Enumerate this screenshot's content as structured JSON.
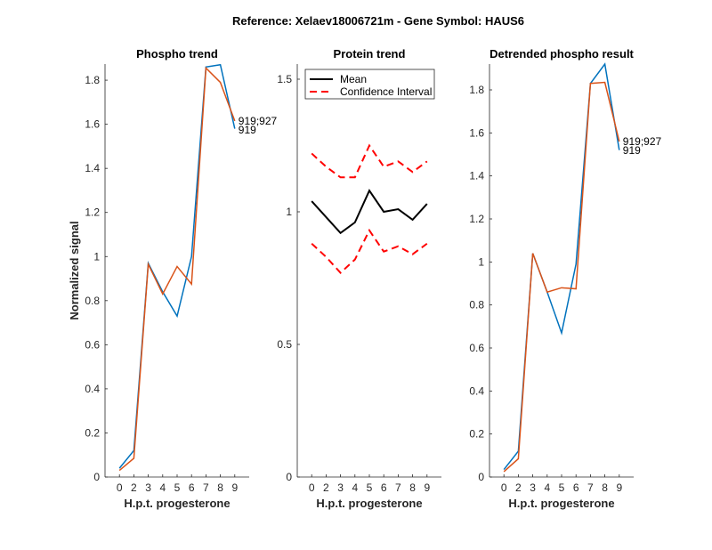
{
  "suptitle": "Reference:  Xelaev18006721m - Gene Symbol:  HAUS6",
  "chart_data": [
    {
      "type": "line",
      "title": "Phospho trend",
      "xlabel": "H.p.t. progesterone",
      "ylabel": "Normalized signal",
      "categories": [
        "0",
        "2",
        "3",
        "4",
        "5",
        "6",
        "7",
        "8",
        "9"
      ],
      "ylim": [
        0,
        1.873
      ],
      "yticks": [
        0,
        0.2,
        0.4,
        0.6,
        0.8,
        1,
        1.2,
        1.4,
        1.6,
        1.8
      ],
      "ytick_labels": [
        "0",
        "0.2",
        "0.4",
        "0.6",
        "0.8",
        "1",
        "1.2",
        "1.4",
        "1.6",
        "1.8"
      ],
      "series": [
        {
          "name": "919",
          "color": "#0072BD",
          "values": [
            0.04,
            0.12,
            0.97,
            0.84,
            0.73,
            1.0,
            1.86,
            1.87,
            1.58
          ]
        },
        {
          "name": "919;927",
          "color": "#D95319",
          "values": [
            0.03,
            0.085,
            0.965,
            0.83,
            0.955,
            0.875,
            1.855,
            1.79,
            1.615
          ]
        }
      ]
    },
    {
      "type": "line",
      "title": "Protein trend",
      "xlabel": "H.p.t. progesterone",
      "ylabel": "",
      "categories": [
        "0",
        "2",
        "3",
        "4",
        "5",
        "6",
        "7",
        "8",
        "9"
      ],
      "ylim": [
        0,
        1.557
      ],
      "yticks": [
        0,
        0.5,
        1,
        1.5
      ],
      "ytick_labels": [
        "0",
        "0.5",
        "1",
        "1.5"
      ],
      "legend": {
        "placement": "top-left",
        "entries": [
          "Mean",
          "Confidence Interval"
        ]
      },
      "series": [
        {
          "name": "Mean",
          "color": "#000000",
          "dash": false,
          "values": [
            1.04,
            0.98,
            0.92,
            0.96,
            1.08,
            1.0,
            1.01,
            0.97,
            1.03
          ]
        },
        {
          "name": "Confidence Interval",
          "color": "#FF0000",
          "dash": true,
          "values": [
            1.22,
            1.17,
            1.13,
            1.13,
            1.25,
            1.17,
            1.19,
            1.15,
            1.19
          ]
        },
        {
          "name": "Confidence Interval",
          "color": "#FF0000",
          "dash": true,
          "values": [
            0.88,
            0.83,
            0.77,
            0.82,
            0.93,
            0.85,
            0.87,
            0.84,
            0.88
          ]
        }
      ]
    },
    {
      "type": "line",
      "title": "Detrended phospho result",
      "xlabel": "H.p.t. progesterone",
      "ylabel": "",
      "categories": [
        "0",
        "2",
        "3",
        "4",
        "5",
        "6",
        "7",
        "8",
        "9"
      ],
      "ylim": [
        0,
        1.92
      ],
      "yticks": [
        0,
        0.2,
        0.4,
        0.6,
        0.8,
        1,
        1.2,
        1.4,
        1.6,
        1.8
      ],
      "ytick_labels": [
        "0",
        "0.2",
        "0.4",
        "0.6",
        "0.8",
        "1",
        "1.2",
        "1.4",
        "1.6",
        "1.8"
      ],
      "series": [
        {
          "name": "919",
          "color": "#0072BD",
          "values": [
            0.035,
            0.12,
            1.04,
            0.86,
            0.67,
            0.99,
            1.83,
            1.92,
            1.52
          ]
        },
        {
          "name": "919;927",
          "color": "#D95319",
          "values": [
            0.025,
            0.085,
            1.04,
            0.86,
            0.88,
            0.875,
            1.83,
            1.835,
            1.56
          ]
        }
      ]
    }
  ]
}
